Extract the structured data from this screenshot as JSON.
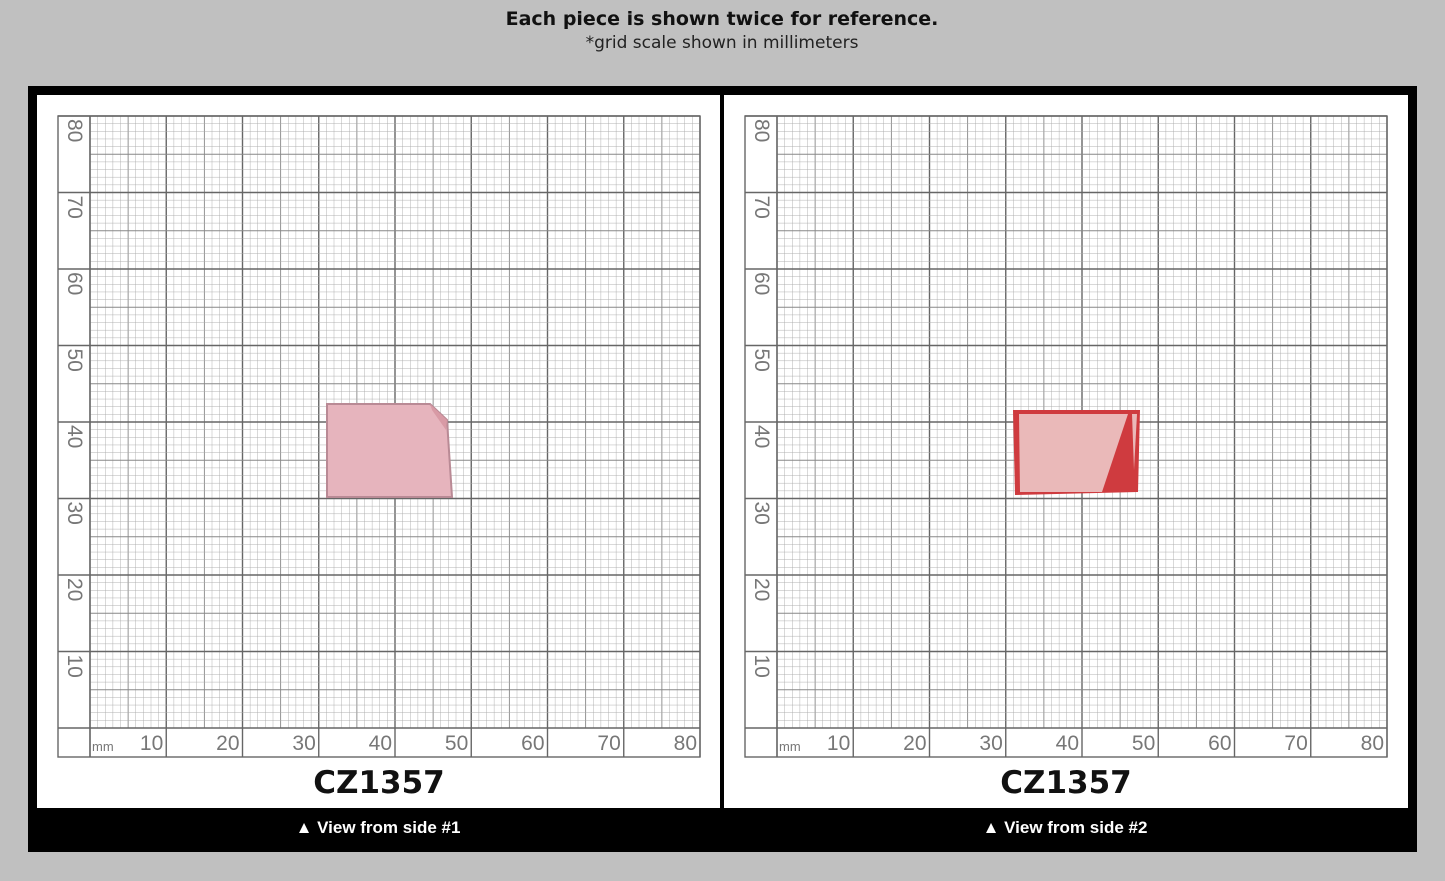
{
  "header": {
    "title": "Each piece is shown twice for reference.",
    "subtitle": "*grid scale shown in millimeters"
  },
  "grid": {
    "unit": "mm",
    "x_labels": [
      10,
      20,
      30,
      40,
      50,
      60,
      70,
      80
    ],
    "y_labels": [
      10,
      20,
      30,
      40,
      50,
      60,
      70,
      80
    ]
  },
  "panels": [
    {
      "code": "CZ1357",
      "caption": "▲ View from side #1"
    },
    {
      "code": "CZ1357",
      "caption": "▲ View from side #2"
    }
  ]
}
